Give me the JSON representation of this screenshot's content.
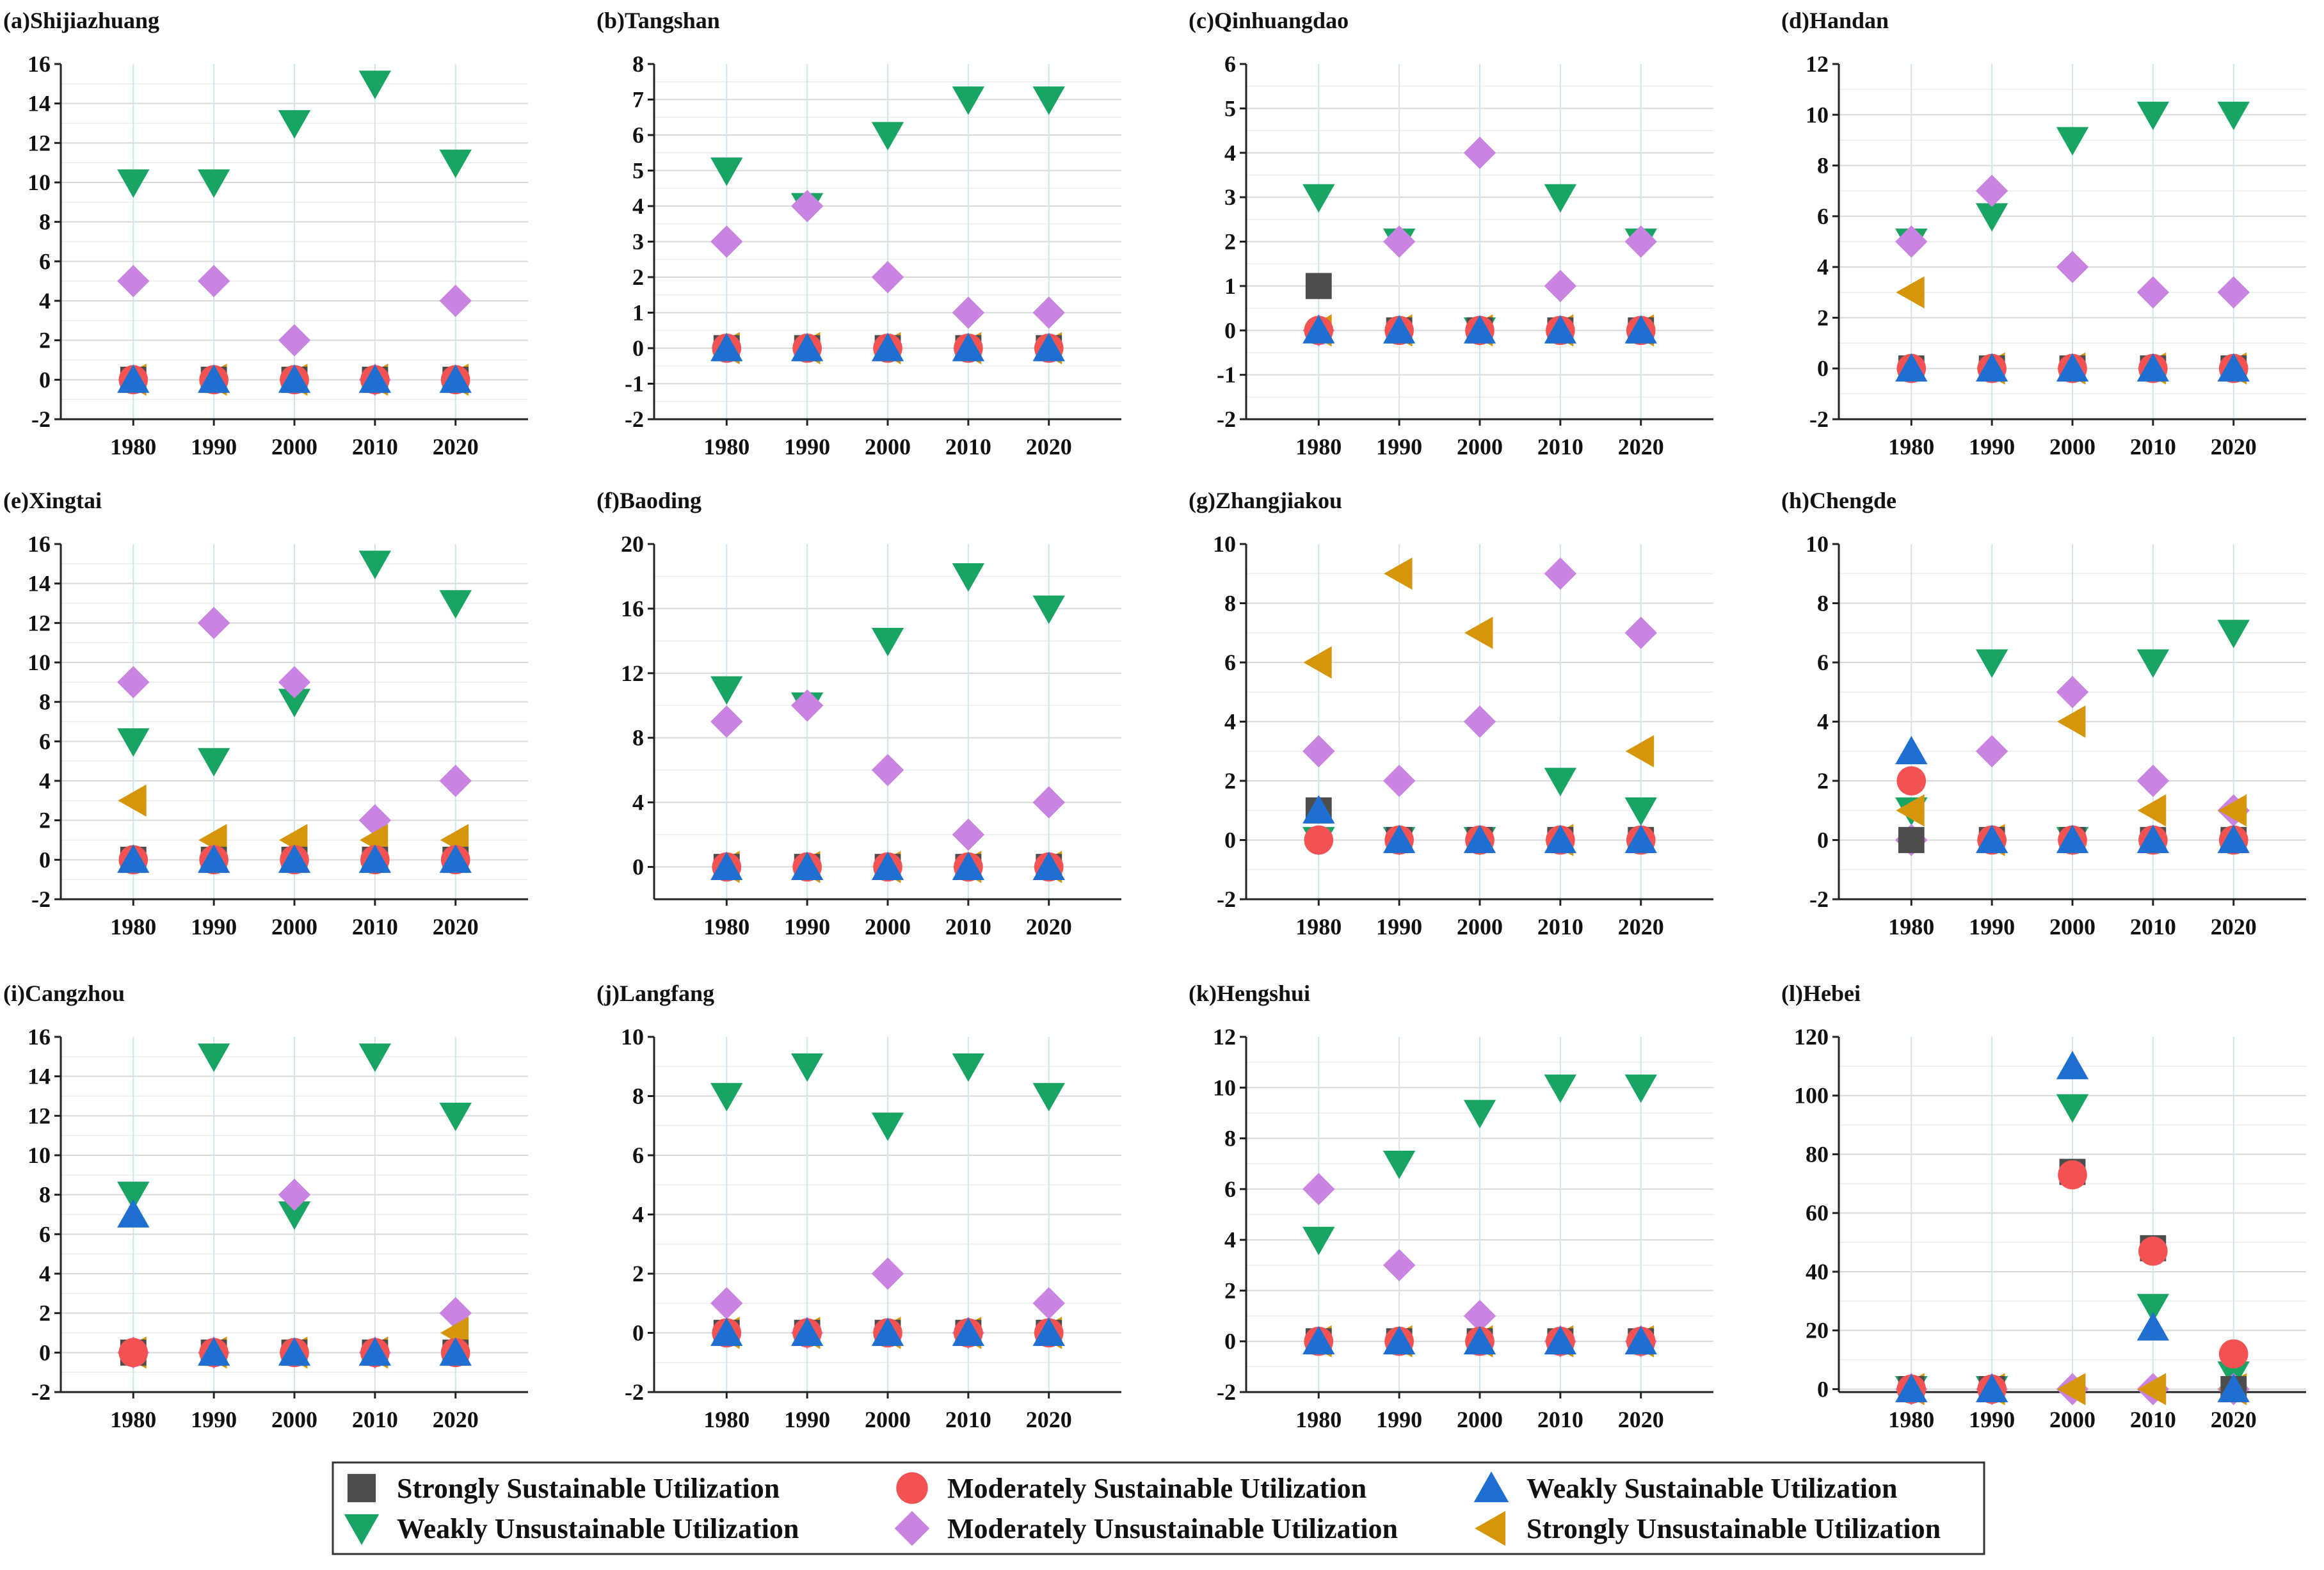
{
  "figure": {
    "colors": {
      "strong_sust": "#4d4d4d",
      "moderate_sust": "#f25252",
      "weak_sust": "#1f6fd1",
      "weak_unsust": "#19a463",
      "moderate_unsust": "#c884e0",
      "strong_unsust": "#d6960b"
    }
  },
  "legend": {
    "items": [
      {
        "key": "strong_sust",
        "label": "Strongly Sustainable Utilization",
        "marker": "square-icon"
      },
      {
        "key": "moderate_sust",
        "label": "Moderately Sustainable Utilization",
        "marker": "circle-icon"
      },
      {
        "key": "weak_sust",
        "label": "Weakly Sustainable Utilization",
        "marker": "triangle-up-icon"
      },
      {
        "key": "weak_unsust",
        "label": "Weakly Unsustainable Utilization",
        "marker": "triangle-down-icon"
      },
      {
        "key": "moderate_unsust",
        "label": "Moderately Unsustainable Utilization",
        "marker": "diamond-icon"
      },
      {
        "key": "strong_unsust",
        "label": "Strongly Unsustainable Utilization",
        "marker": "triangle-left-icon"
      }
    ]
  },
  "chart_data": [
    {
      "type": "scatter",
      "title": "(a)Shijiazhuang",
      "categories": [
        "1980",
        "1990",
        "2000",
        "2010",
        "2020"
      ],
      "ylim": [
        -2,
        16
      ],
      "yticks": [
        -2,
        0,
        2,
        4,
        6,
        8,
        10,
        12,
        14,
        16
      ],
      "series": [
        {
          "key": "strong_sust",
          "values": [
            0,
            0,
            0,
            0,
            0
          ]
        },
        {
          "key": "moderate_sust",
          "values": [
            0,
            0,
            0,
            0,
            0
          ]
        },
        {
          "key": "weak_sust",
          "values": [
            0,
            0,
            0,
            0,
            0
          ]
        },
        {
          "key": "weak_unsust",
          "values": [
            10,
            10,
            13,
            15,
            11
          ]
        },
        {
          "key": "moderate_unsust",
          "values": [
            5,
            5,
            2,
            0,
            4
          ]
        },
        {
          "key": "strong_unsust",
          "values": [
            0,
            0,
            0,
            0,
            0
          ]
        }
      ]
    },
    {
      "type": "scatter",
      "title": "(b)Tangshan",
      "categories": [
        "1980",
        "1990",
        "2000",
        "2010",
        "2020"
      ],
      "ylim": [
        -2,
        8
      ],
      "yticks": [
        -2,
        -1,
        0,
        1,
        2,
        3,
        4,
        5,
        6,
        7,
        8
      ],
      "series": [
        {
          "key": "strong_sust",
          "values": [
            0,
            0,
            0,
            0,
            0
          ]
        },
        {
          "key": "moderate_sust",
          "values": [
            0,
            0,
            0,
            0,
            0
          ]
        },
        {
          "key": "weak_sust",
          "values": [
            0,
            0,
            0,
            0,
            0
          ]
        },
        {
          "key": "weak_unsust",
          "values": [
            5,
            4,
            6,
            7,
            7
          ]
        },
        {
          "key": "moderate_unsust",
          "values": [
            3,
            4,
            2,
            1,
            1
          ]
        },
        {
          "key": "strong_unsust",
          "values": [
            0,
            0,
            0,
            0,
            0
          ]
        }
      ]
    },
    {
      "type": "scatter",
      "title": "(c)Qinhuangdao",
      "categories": [
        "1980",
        "1990",
        "2000",
        "2010",
        "2020"
      ],
      "ylim": [
        -2,
        6
      ],
      "yticks": [
        -2,
        -1,
        0,
        1,
        2,
        3,
        4,
        5,
        6
      ],
      "series": [
        {
          "key": "strong_sust",
          "values": [
            1,
            0,
            0,
            0,
            0
          ]
        },
        {
          "key": "moderate_sust",
          "values": [
            0,
            0,
            0,
            0,
            0
          ]
        },
        {
          "key": "weak_sust",
          "values": [
            0,
            0,
            0,
            0,
            0
          ]
        },
        {
          "key": "weak_unsust",
          "values": [
            3,
            2,
            0,
            3,
            2
          ]
        },
        {
          "key": "moderate_unsust",
          "values": [
            0,
            2,
            4,
            1,
            2
          ]
        },
        {
          "key": "strong_unsust",
          "values": [
            0,
            0,
            0,
            0,
            0
          ]
        }
      ]
    },
    {
      "type": "scatter",
      "title": "(d)Handan",
      "categories": [
        "1980",
        "1990",
        "2000",
        "2010",
        "2020"
      ],
      "ylim": [
        -2,
        12
      ],
      "yticks": [
        -2,
        0,
        2,
        4,
        6,
        8,
        10,
        12
      ],
      "series": [
        {
          "key": "strong_sust",
          "values": [
            0,
            0,
            0,
            0,
            0
          ]
        },
        {
          "key": "moderate_sust",
          "values": [
            0,
            0,
            0,
            0,
            0
          ]
        },
        {
          "key": "weak_sust",
          "values": [
            0,
            0,
            0,
            0,
            0
          ]
        },
        {
          "key": "weak_unsust",
          "values": [
            5,
            6,
            9,
            10,
            10
          ]
        },
        {
          "key": "moderate_unsust",
          "values": [
            5,
            7,
            4,
            3,
            3
          ]
        },
        {
          "key": "strong_unsust",
          "values": [
            3,
            0,
            0,
            0,
            0
          ]
        }
      ]
    },
    {
      "type": "scatter",
      "title": "(e)Xingtai",
      "categories": [
        "1980",
        "1990",
        "2000",
        "2010",
        "2020"
      ],
      "ylim": [
        -2,
        16
      ],
      "yticks": [
        -2,
        0,
        2,
        4,
        6,
        8,
        10,
        12,
        14,
        16
      ],
      "series": [
        {
          "key": "strong_sust",
          "values": [
            0,
            0,
            0,
            0,
            0
          ]
        },
        {
          "key": "moderate_sust",
          "values": [
            0,
            0,
            0,
            0,
            0
          ]
        },
        {
          "key": "weak_sust",
          "values": [
            0,
            0,
            0,
            0,
            0
          ]
        },
        {
          "key": "weak_unsust",
          "values": [
            6,
            5,
            8,
            15,
            13
          ]
        },
        {
          "key": "moderate_unsust",
          "values": [
            9,
            12,
            9,
            2,
            4
          ]
        },
        {
          "key": "strong_unsust",
          "values": [
            3,
            1,
            1,
            1,
            1
          ]
        }
      ]
    },
    {
      "type": "scatter",
      "title": "(f)Baoding",
      "categories": [
        "1980",
        "1990",
        "2000",
        "2010",
        "2020"
      ],
      "ylim": [
        -2,
        20
      ],
      "yticks": [
        0,
        4,
        8,
        12,
        16,
        20
      ],
      "series": [
        {
          "key": "strong_sust",
          "values": [
            0,
            0,
            0,
            0,
            0
          ]
        },
        {
          "key": "moderate_sust",
          "values": [
            0,
            0,
            0,
            0,
            0
          ]
        },
        {
          "key": "weak_sust",
          "values": [
            0,
            0,
            0,
            0,
            0
          ]
        },
        {
          "key": "weak_unsust",
          "values": [
            11,
            10,
            14,
            18,
            16
          ]
        },
        {
          "key": "moderate_unsust",
          "values": [
            9,
            10,
            6,
            2,
            4
          ]
        },
        {
          "key": "strong_unsust",
          "values": [
            0,
            0,
            0,
            0,
            0
          ]
        }
      ]
    },
    {
      "type": "scatter",
      "title": "(g)Zhangjiakou",
      "categories": [
        "1980",
        "1990",
        "2000",
        "2010",
        "2020"
      ],
      "ylim": [
        -2,
        10
      ],
      "yticks": [
        -2,
        0,
        2,
        4,
        6,
        8,
        10
      ],
      "series": [
        {
          "key": "strong_sust",
          "values": [
            1,
            0,
            0,
            0,
            0
          ]
        },
        {
          "key": "moderate_sust",
          "values": [
            0,
            0,
            0,
            0,
            0
          ]
        },
        {
          "key": "weak_sust",
          "values": [
            1,
            0,
            0,
            0,
            0
          ]
        },
        {
          "key": "weak_unsust",
          "values": [
            0,
            0,
            0,
            2,
            1
          ]
        },
        {
          "key": "moderate_unsust",
          "values": [
            3,
            2,
            4,
            9,
            7
          ]
        },
        {
          "key": "strong_unsust",
          "values": [
            6,
            9,
            7,
            0,
            3
          ]
        }
      ]
    },
    {
      "type": "scatter",
      "title": "(h)Chengde",
      "categories": [
        "1980",
        "1990",
        "2000",
        "2010",
        "2020"
      ],
      "ylim": [
        -2,
        10
      ],
      "yticks": [
        -2,
        0,
        2,
        4,
        6,
        8,
        10
      ],
      "series": [
        {
          "key": "strong_sust",
          "values": [
            0,
            0,
            0,
            0,
            0
          ]
        },
        {
          "key": "moderate_sust",
          "values": [
            2,
            0,
            0,
            0,
            0
          ]
        },
        {
          "key": "weak_sust",
          "values": [
            3,
            0,
            0,
            0,
            0
          ]
        },
        {
          "key": "weak_unsust",
          "values": [
            1,
            6,
            0,
            6,
            7
          ]
        },
        {
          "key": "moderate_unsust",
          "values": [
            0,
            3,
            5,
            2,
            1
          ]
        },
        {
          "key": "strong_unsust",
          "values": [
            1,
            0,
            4,
            1,
            1
          ]
        }
      ]
    },
    {
      "type": "scatter",
      "title": "(i)Cangzhou",
      "categories": [
        "1980",
        "1990",
        "2000",
        "2010",
        "2020"
      ],
      "ylim": [
        -2,
        16
      ],
      "yticks": [
        -2,
        0,
        2,
        4,
        6,
        8,
        10,
        12,
        14,
        16
      ],
      "series": [
        {
          "key": "strong_sust",
          "values": [
            0,
            0,
            0,
            0,
            0
          ]
        },
        {
          "key": "moderate_sust",
          "values": [
            0,
            0,
            0,
            0,
            0
          ]
        },
        {
          "key": "weak_sust",
          "values": [
            7,
            0,
            0,
            0,
            0
          ]
        },
        {
          "key": "weak_unsust",
          "values": [
            8,
            15,
            7,
            15,
            12
          ]
        },
        {
          "key": "moderate_unsust",
          "values": [
            0,
            0,
            8,
            0,
            2
          ]
        },
        {
          "key": "strong_unsust",
          "values": [
            0,
            0,
            0,
            0,
            1
          ]
        }
      ]
    },
    {
      "type": "scatter",
      "title": "(j)Langfang",
      "categories": [
        "1980",
        "1990",
        "2000",
        "2010",
        "2020"
      ],
      "ylim": [
        -2,
        10
      ],
      "yticks": [
        -2,
        0,
        2,
        4,
        6,
        8,
        10
      ],
      "series": [
        {
          "key": "strong_sust",
          "values": [
            0,
            0,
            0,
            0,
            0
          ]
        },
        {
          "key": "moderate_sust",
          "values": [
            0,
            0,
            0,
            0,
            0
          ]
        },
        {
          "key": "weak_sust",
          "values": [
            0,
            0,
            0,
            0,
            0
          ]
        },
        {
          "key": "weak_unsust",
          "values": [
            8,
            9,
            7,
            9,
            8
          ]
        },
        {
          "key": "moderate_unsust",
          "values": [
            1,
            0,
            2,
            0,
            1
          ]
        },
        {
          "key": "strong_unsust",
          "values": [
            0,
            0,
            0,
            0,
            0
          ]
        }
      ]
    },
    {
      "type": "scatter",
      "title": "(k)Hengshui",
      "categories": [
        "1980",
        "1990",
        "2000",
        "2010",
        "2020"
      ],
      "ylim": [
        -2,
        12
      ],
      "yticks": [
        -2,
        0,
        2,
        4,
        6,
        8,
        10,
        12
      ],
      "series": [
        {
          "key": "strong_sust",
          "values": [
            0,
            0,
            0,
            0,
            0
          ]
        },
        {
          "key": "moderate_sust",
          "values": [
            0,
            0,
            0,
            0,
            0
          ]
        },
        {
          "key": "weak_sust",
          "values": [
            0,
            0,
            0,
            0,
            0
          ]
        },
        {
          "key": "weak_unsust",
          "values": [
            4,
            7,
            9,
            10,
            10
          ]
        },
        {
          "key": "moderate_unsust",
          "values": [
            6,
            3,
            1,
            0,
            0
          ]
        },
        {
          "key": "strong_unsust",
          "values": [
            0,
            0,
            0,
            0,
            0
          ]
        }
      ]
    },
    {
      "type": "scatter",
      "title": "(l)Hebei",
      "categories": [
        "1980",
        "1990",
        "2000",
        "2010",
        "2020"
      ],
      "ylim": [
        -1,
        120
      ],
      "yticks": [
        0,
        20,
        40,
        60,
        80,
        100,
        120
      ],
      "series": [
        {
          "key": "strong_sust",
          "values": [
            0,
            0,
            74,
            48,
            0
          ]
        },
        {
          "key": "moderate_sust",
          "values": [
            0,
            0,
            73,
            47,
            12
          ]
        },
        {
          "key": "weak_sust",
          "values": [
            0,
            0,
            110,
            21,
            0
          ]
        },
        {
          "key": "weak_unsust",
          "values": [
            0,
            0,
            96,
            28,
            5
          ]
        },
        {
          "key": "moderate_unsust",
          "values": [
            0,
            0,
            0,
            0,
            0
          ]
        },
        {
          "key": "strong_unsust",
          "values": [
            0,
            0,
            0,
            0,
            0
          ]
        }
      ]
    }
  ]
}
